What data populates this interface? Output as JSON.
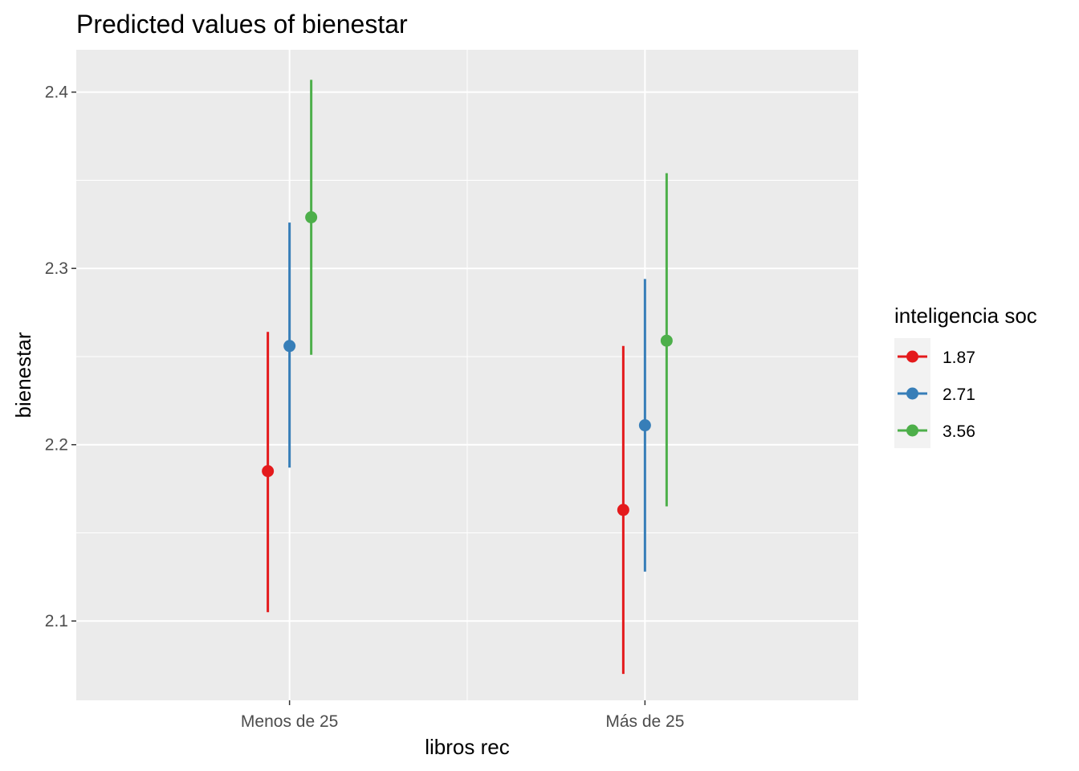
{
  "chart_data": {
    "type": "scatter",
    "subtype": "point-range (predicted values with confidence intervals)",
    "title": "Predicted values of bienestar",
    "xlabel": "libros rec",
    "ylabel": "bienestar",
    "categories": [
      "Menos de 25",
      "Más de 25"
    ],
    "ylim": [
      2.055,
      2.424
    ],
    "yticks": [
      2.1,
      2.2,
      2.3,
      2.4
    ],
    "ytick_labels": [
      "2.1",
      "2.2",
      "2.3",
      "2.4"
    ],
    "grid": true,
    "legend": {
      "title": "inteligencia soc",
      "position": "right"
    },
    "series": [
      {
        "name": "1.87",
        "color": "#E41A1C",
        "values": [
          2.185,
          2.163
        ],
        "lower": [
          2.105,
          2.07
        ],
        "upper": [
          2.264,
          2.256
        ]
      },
      {
        "name": "2.71",
        "color": "#377EB8",
        "values": [
          2.256,
          2.211
        ],
        "lower": [
          2.187,
          2.128
        ],
        "upper": [
          2.326,
          2.294
        ]
      },
      {
        "name": "3.56",
        "color": "#4DAF4A",
        "values": [
          2.329,
          2.259
        ],
        "lower": [
          2.251,
          2.165
        ],
        "upper": [
          2.407,
          2.354
        ]
      }
    ]
  }
}
